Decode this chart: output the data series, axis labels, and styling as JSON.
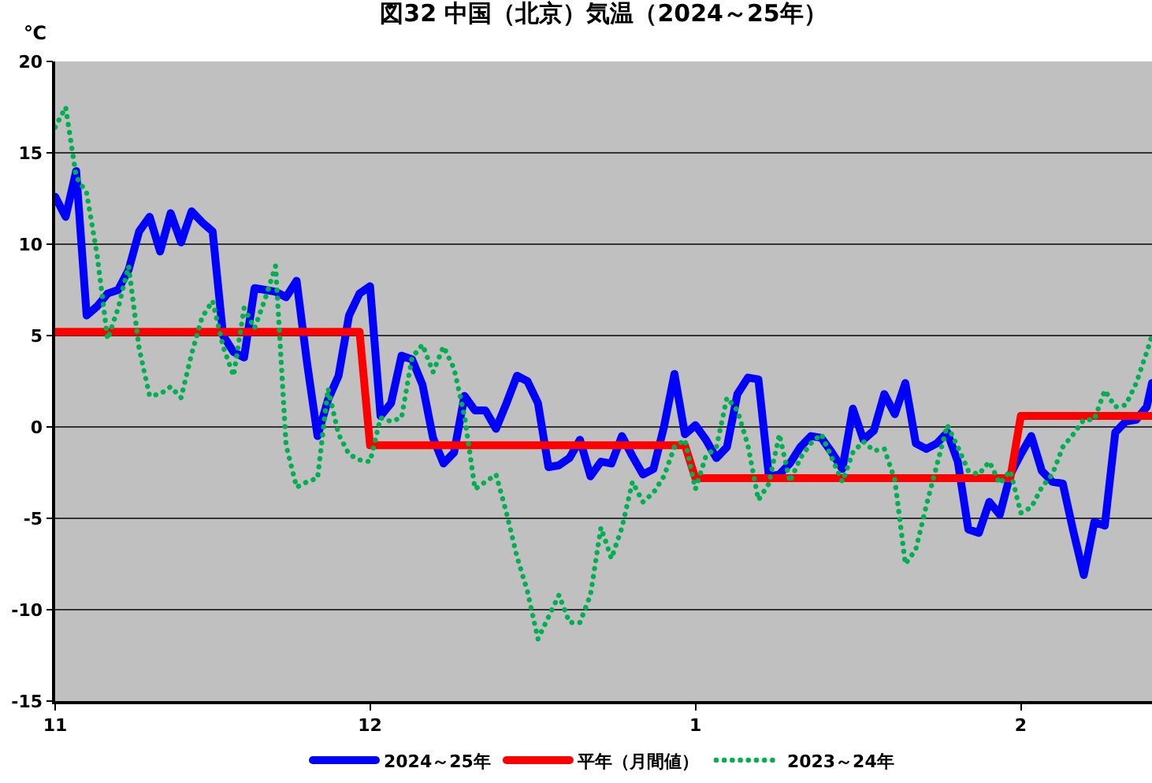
{
  "chart_data": {
    "type": "line",
    "title": "図32 中国（北京）気温（2024～25年）",
    "ylabel": "℃",
    "x": [
      "2024-11-01",
      "2024-11-02",
      "2024-11-03",
      "2024-11-04",
      "2024-11-05",
      "2024-11-06",
      "2024-11-07",
      "2024-11-08",
      "2024-11-09",
      "2024-11-10",
      "2024-11-11",
      "2024-11-12",
      "2024-11-13",
      "2024-11-14",
      "2024-11-15",
      "2024-11-16",
      "2024-11-17",
      "2024-11-18",
      "2024-11-19",
      "2024-11-20",
      "2024-11-21",
      "2024-11-22",
      "2024-11-23",
      "2024-11-24",
      "2024-11-25",
      "2024-11-26",
      "2024-11-27",
      "2024-11-28",
      "2024-11-29",
      "2024-11-30",
      "2024-12-01",
      "2024-12-02",
      "2024-12-03",
      "2024-12-04",
      "2024-12-05",
      "2024-12-06",
      "2024-12-07",
      "2024-12-08",
      "2024-12-09",
      "2024-12-10",
      "2024-12-11",
      "2024-12-12",
      "2024-12-13",
      "2024-12-14",
      "2024-12-15",
      "2024-12-16",
      "2024-12-17",
      "2024-12-18",
      "2024-12-19",
      "2024-12-20",
      "2024-12-21",
      "2024-12-22",
      "2024-12-23",
      "2024-12-24",
      "2024-12-25",
      "2024-12-26",
      "2024-12-27",
      "2024-12-28",
      "2024-12-29",
      "2024-12-30",
      "2024-12-31",
      "2025-01-01",
      "2025-01-02",
      "2025-01-03",
      "2025-01-04",
      "2025-01-05",
      "2025-01-06",
      "2025-01-07",
      "2025-01-08",
      "2025-01-09",
      "2025-01-10",
      "2025-01-11",
      "2025-01-12",
      "2025-01-13",
      "2025-01-14",
      "2025-01-15",
      "2025-01-16",
      "2025-01-17",
      "2025-01-18",
      "2025-01-19",
      "2025-01-20",
      "2025-01-21",
      "2025-01-22",
      "2025-01-23",
      "2025-01-24",
      "2025-01-25",
      "2025-01-26",
      "2025-01-27",
      "2025-01-28",
      "2025-01-29",
      "2025-01-30",
      "2025-01-31",
      "2025-02-01",
      "2025-02-02",
      "2025-02-03",
      "2025-02-04",
      "2025-02-05",
      "2025-02-06",
      "2025-02-07",
      "2025-02-08",
      "2025-02-09",
      "2025-02-10",
      "2025-02-11",
      "2025-02-12",
      "2025-02-13",
      "2025-02-13T12:00"
    ],
    "xlim": [
      "2024-11-01",
      "2025-02-13T12:00"
    ],
    "xticks": [
      {
        "value": "2024-11-01",
        "label": "11"
      },
      {
        "value": "2024-12-01",
        "label": "12"
      },
      {
        "value": "2025-01-01",
        "label": "1"
      },
      {
        "value": "2025-02-01",
        "label": "2"
      }
    ],
    "ylim": [
      -15,
      20
    ],
    "yticks": [
      -15,
      -10,
      -5,
      0,
      5,
      10,
      15,
      20
    ],
    "grid": "y",
    "legend": "bottom",
    "series": [
      {
        "name": "2024～25年",
        "color": "#0000ff",
        "line_style": "solid",
        "values": [
          12.6,
          11.5,
          14.0,
          6.1,
          6.6,
          7.3,
          7.5,
          8.6,
          10.7,
          11.5,
          9.6,
          11.7,
          10.1,
          11.8,
          11.2,
          10.7,
          5.0,
          4.1,
          3.8,
          7.6,
          7.5,
          7.4,
          7.1,
          8.0,
          3.5,
          -0.5,
          1.5,
          2.8,
          6.1,
          7.3,
          7.7,
          0.6,
          1.3,
          3.9,
          3.7,
          2.3,
          -0.6,
          -2.0,
          -1.4,
          1.7,
          0.9,
          0.9,
          -0.1,
          1.3,
          2.8,
          2.5,
          1.3,
          -2.2,
          -2.1,
          -1.7,
          -0.7,
          -2.7,
          -1.9,
          -2.0,
          -0.5,
          -1.6,
          -2.6,
          -2.3,
          0.0,
          2.9,
          -0.4,
          0.1,
          -0.7,
          -1.7,
          -1.1,
          1.8,
          2.7,
          2.6,
          -2.7,
          -2.6,
          -2.0,
          -1.1,
          -0.5,
          -0.6,
          -1.4,
          -2.3,
          1.0,
          -0.7,
          -0.2,
          1.8,
          0.7,
          2.4,
          -0.9,
          -1.2,
          -0.9,
          -0.3,
          -1.9,
          -5.6,
          -5.8,
          -4.1,
          -4.8,
          -2.6,
          -1.5,
          -0.5,
          -2.4,
          -3.0,
          -3.1,
          -5.7,
          -8.1,
          -5.2,
          -5.4,
          -0.3,
          0.3,
          0.4,
          1.1,
          2.4
        ]
      },
      {
        "name": "平年（月間値）",
        "color": "#ff0000",
        "line_style": "solid",
        "x": [
          "2024-11-01",
          "2024-11-30",
          "2024-12-01",
          "2024-12-31",
          "2025-01-01",
          "2025-01-31",
          "2025-02-01",
          "2025-02-13T12:00"
        ],
        "values": [
          5.2,
          5.2,
          -1.0,
          -1.0,
          -2.8,
          -2.8,
          0.6,
          0.6
        ]
      },
      {
        "name": "2023～24年",
        "color": "#00b050",
        "line_style": "dotted",
        "values": [
          16.4,
          17.5,
          13.7,
          12.8,
          9.4,
          4.8,
          6.5,
          8.8,
          4.3,
          1.7,
          1.8,
          2.2,
          1.6,
          4.0,
          6.0,
          6.9,
          4.4,
          2.8,
          6.5,
          5.4,
          7.0,
          8.8,
          -1.0,
          -3.3,
          -3.0,
          -2.8,
          2.1,
          -0.4,
          -1.5,
          -1.8,
          -1.9,
          0.5,
          0.3,
          0.5,
          3.8,
          4.5,
          3.0,
          4.4,
          3.2,
          0.6,
          -3.4,
          -3.0,
          -2.6,
          -4.7,
          -7.1,
          -9.0,
          -11.6,
          -10.4,
          -9.2,
          -10.7,
          -10.7,
          -9.2,
          -5.5,
          -7.2,
          -5.5,
          -3.0,
          -4.1,
          -3.6,
          -2.7,
          -1.1,
          -0.7,
          -3.4,
          -1.6,
          -1.1,
          1.6,
          0.9,
          -1.0,
          -4.0,
          -3.1,
          -0.4,
          -3.0,
          -1.7,
          -0.9,
          -0.4,
          -1.7,
          -3.0,
          -1.4,
          -0.8,
          -1.3,
          -1.2,
          -2.9,
          -7.5,
          -6.7,
          -4.3,
          -2.1,
          0.1,
          -1.1,
          -2.4,
          -2.6,
          -1.9,
          -3.1,
          -2.4,
          -4.7,
          -4.4,
          -3.3,
          -2.6,
          -1.1,
          -0.4,
          0.4,
          0.4,
          2.0,
          1.1,
          1.2,
          2.4,
          4.1,
          5.0
        ]
      }
    ]
  }
}
